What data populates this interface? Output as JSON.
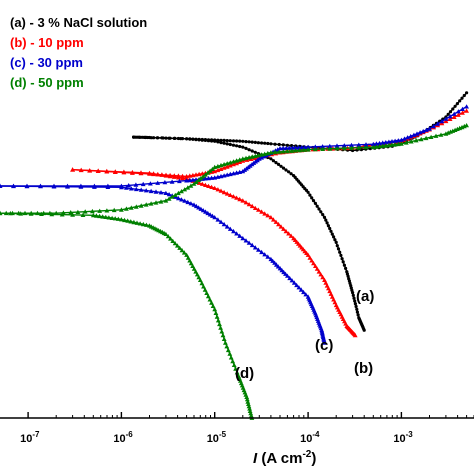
{
  "chart_data": {
    "type": "line",
    "xscale": "log",
    "xlim": [
      5e-08,
      0.006
    ],
    "ylim": [
      0,
      1
    ],
    "x_ticks": [
      {
        "base": "10",
        "exp": "-7",
        "value": 1e-07
      },
      {
        "base": "10",
        "exp": "-6",
        "value": 1e-06
      },
      {
        "base": "10",
        "exp": "-5",
        "value": 1e-05
      },
      {
        "base": "10",
        "exp": "-4",
        "value": 0.0001
      },
      {
        "base": "10",
        "exp": "-3",
        "value": 0.001
      }
    ],
    "xlabel": {
      "italic": "I",
      "rest": " (A cm",
      "sup": "-2",
      "close": ")"
    },
    "ylabel": "",
    "grid": false,
    "legend_position": "top-left",
    "legend": [
      {
        "text": "(a) - 3 % NaCl solution",
        "color": "#000000"
      },
      {
        "text": "(b) - 10 ppm",
        "color": "#ff0000"
      },
      {
        "text": "(c) - 30 ppm",
        "color": "#0000cc"
      },
      {
        "text": "(d) - 50 ppm",
        "color": "#008000"
      }
    ],
    "series": [
      {
        "name": "(a) - 3 % NaCl solution",
        "label": "(a)",
        "color": "#000000",
        "anodic": [
          [
            1.35e-06,
            0.672
          ],
          [
            2e-06,
            0.671
          ],
          [
            5e-06,
            0.668
          ],
          [
            1e-05,
            0.665
          ],
          [
            2e-05,
            0.662
          ],
          [
            4e-05,
            0.656
          ],
          [
            0.0001,
            0.648
          ],
          [
            0.0003,
            0.64
          ],
          [
            0.0008,
            0.65
          ],
          [
            0.0015,
            0.675
          ],
          [
            0.003,
            0.72
          ],
          [
            0.005,
            0.778
          ]
        ],
        "cathodic": [
          [
            1.35e-06,
            0.672
          ],
          [
            5e-06,
            0.668
          ],
          [
            1e-05,
            0.662
          ],
          [
            2e-05,
            0.648
          ],
          [
            4e-05,
            0.62
          ],
          [
            7e-05,
            0.58
          ],
          [
            0.0001,
            0.54
          ],
          [
            0.00015,
            0.48
          ],
          [
            0.0002,
            0.42
          ],
          [
            0.00026,
            0.35
          ],
          [
            0.0003,
            0.3
          ],
          [
            0.00035,
            0.24
          ],
          [
            0.0004,
            0.21
          ]
        ]
      },
      {
        "name": "(b) - 10 ppm",
        "label": "(b)",
        "color": "#ff0000",
        "anodic": [
          [
            3e-07,
            0.594
          ],
          [
            2e-06,
            0.584
          ],
          [
            5e-06,
            0.578
          ],
          [
            1e-05,
            0.59
          ],
          [
            2e-05,
            0.615
          ],
          [
            5e-05,
            0.635
          ],
          [
            0.0001,
            0.642
          ],
          [
            0.0003,
            0.646
          ],
          [
            0.001,
            0.662
          ],
          [
            0.002,
            0.69
          ],
          [
            0.005,
            0.735
          ]
        ],
        "cathodic": [
          [
            3e-07,
            0.594
          ],
          [
            2e-06,
            0.586
          ],
          [
            5e-06,
            0.572
          ],
          [
            1e-05,
            0.55
          ],
          [
            2e-05,
            0.52
          ],
          [
            4e-05,
            0.48
          ],
          [
            7e-05,
            0.43
          ],
          [
            0.0001,
            0.39
          ],
          [
            0.00015,
            0.33
          ],
          [
            0.0002,
            0.27
          ],
          [
            0.00026,
            0.22
          ],
          [
            0.00032,
            0.198
          ]
        ]
      },
      {
        "name": "(c) - 30 ppm",
        "label": "(c)",
        "color": "#0000cc",
        "anodic": [
          [
            5e-08,
            0.555
          ],
          [
            1e-06,
            0.555
          ],
          [
            5e-06,
            0.568
          ],
          [
            1e-05,
            0.575
          ],
          [
            2e-05,
            0.59
          ],
          [
            3e-05,
            0.62
          ],
          [
            5e-05,
            0.645
          ],
          [
            0.0001,
            0.648
          ],
          [
            0.0005,
            0.655
          ],
          [
            0.001,
            0.665
          ],
          [
            0.002,
            0.692
          ],
          [
            0.005,
            0.745
          ]
        ],
        "cathodic": [
          [
            5e-08,
            0.555
          ],
          [
            1e-06,
            0.552
          ],
          [
            3e-06,
            0.538
          ],
          [
            6e-06,
            0.51
          ],
          [
            1e-05,
            0.48
          ],
          [
            2e-05,
            0.43
          ],
          [
            4e-05,
            0.38
          ],
          [
            6e-05,
            0.34
          ],
          [
            0.0001,
            0.29
          ],
          [
            0.00012,
            0.25
          ],
          [
            0.00014,
            0.21
          ],
          [
            0.00015,
            0.18
          ]
        ]
      },
      {
        "name": "(d) - 50 ppm",
        "label": "(d)",
        "color": "#008000",
        "anodic": [
          [
            5e-08,
            0.49
          ],
          [
            2e-07,
            0.49
          ],
          [
            1e-06,
            0.498
          ],
          [
            3e-06,
            0.52
          ],
          [
            6e-06,
            0.56
          ],
          [
            1e-05,
            0.6
          ],
          [
            2e-05,
            0.62
          ],
          [
            4e-05,
            0.635
          ],
          [
            0.0001,
            0.642
          ],
          [
            0.0005,
            0.648
          ],
          [
            0.001,
            0.656
          ],
          [
            0.003,
            0.68
          ],
          [
            0.005,
            0.7
          ]
        ],
        "cathodic": [
          [
            5e-08,
            0.49
          ],
          [
            5e-07,
            0.485
          ],
          [
            1e-06,
            0.475
          ],
          [
            2e-06,
            0.46
          ],
          [
            3e-06,
            0.44
          ],
          [
            5e-06,
            0.39
          ],
          [
            7e-06,
            0.33
          ],
          [
            1e-05,
            0.26
          ],
          [
            1.3e-05,
            0.18
          ],
          [
            1.8e-05,
            0.1
          ],
          [
            2.2e-05,
            0.05
          ],
          [
            2.5e-05,
            0.0
          ]
        ]
      }
    ]
  }
}
